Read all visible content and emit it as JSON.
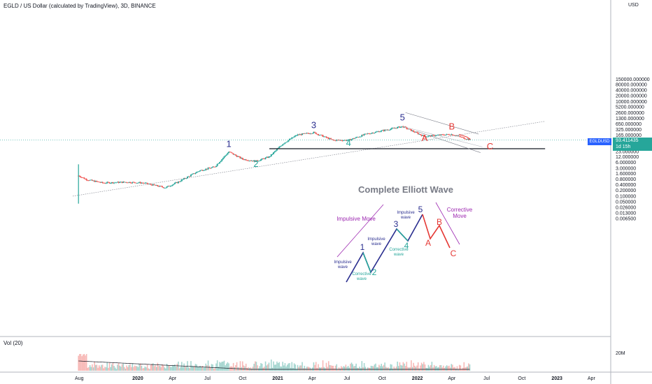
{
  "title": "EGLD / US Dollar (calculated by TradingView), 3D, BINANCE",
  "volume_label": "Vol (20)",
  "volume_axis_label": "20M",
  "symbol_tag": "EGLDUSD",
  "current_price": "93.411435",
  "countdown": "1d 15h",
  "axis_currency": "USD",
  "diagram_title": "Complete Elliott Wave",
  "colors": {
    "bull": "#26a69a",
    "bear": "#ef5350",
    "blue_wave": "#2a2e8f",
    "red_wave": "#e53935",
    "green_wave": "#26a69a",
    "purple": "#9c27b0",
    "price_tag": "#2962ff"
  },
  "chart_data": {
    "type": "candlestick",
    "y_scale": "log",
    "y_ticks": [
      "150000.000000",
      "80000.000000",
      "40000.000000",
      "20000.000000",
      "10000.000000",
      "5200.000000",
      "2600.000000",
      "1300.000000",
      "650.000000",
      "325.000000",
      "165.000000",
      "45.000000",
      "23.000000",
      "12.000000",
      "6.000000",
      "3.000000",
      "1.600000",
      "0.800000",
      "0.400000",
      "0.200000",
      "0.100000",
      "0.050000",
      "0.026000",
      "0.013000",
      "0.006500"
    ],
    "x_ticks": [
      "Aug",
      "2020",
      "Apr",
      "Jul",
      "Oct",
      "2021",
      "Apr",
      "Jul",
      "Oct",
      "2022",
      "Apr",
      "Jul",
      "Oct",
      "2023",
      "Apr"
    ],
    "price_path": [
      [
        "2019-07-30",
        1.2
      ],
      [
        "2019-08-20",
        0.75
      ],
      [
        "2019-10-01",
        0.5
      ],
      [
        "2019-12-01",
        0.55
      ],
      [
        "2020-01-15",
        0.5
      ],
      [
        "2020-03-13",
        0.28
      ],
      [
        "2020-04-15",
        0.55
      ],
      [
        "2020-06-10",
        2.2
      ],
      [
        "2020-07-20",
        3.5
      ],
      [
        "2020-08-26",
        22
      ],
      [
        "2020-10-01",
        9
      ],
      [
        "2020-11-05",
        7
      ],
      [
        "2020-12-10",
        12
      ],
      [
        "2021-01-15",
        60
      ],
      [
        "2021-02-20",
        170
      ],
      [
        "2021-04-05",
        230
      ],
      [
        "2021-05-25",
        90
      ],
      [
        "2021-07-05",
        90
      ],
      [
        "2021-08-20",
        190
      ],
      [
        "2021-11-23",
        480
      ],
      [
        "2022-01-20",
        140
      ],
      [
        "2022-02-20",
        165
      ],
      [
        "2022-04-01",
        185
      ],
      [
        "2022-05-01",
        120
      ],
      [
        "2022-05-20",
        93
      ]
    ],
    "wave_labels": [
      {
        "text": "1",
        "date": "2020-08-26",
        "group": "impulse"
      },
      {
        "text": "2",
        "date": "2020-11-05",
        "group": "corrective"
      },
      {
        "text": "3",
        "date": "2021-04-05",
        "group": "impulse"
      },
      {
        "text": "4",
        "date": "2021-07-05",
        "group": "corrective"
      },
      {
        "text": "5",
        "date": "2021-11-23",
        "group": "impulse"
      },
      {
        "text": "A",
        "date": "2022-01-20",
        "group": "abc"
      },
      {
        "text": "B",
        "date": "2022-04-01",
        "group": "abc"
      },
      {
        "text": "C",
        "date": "2022-07-10",
        "group": "abc"
      }
    ],
    "support_level": 32,
    "diagram": {
      "numbers": [
        "1",
        "2",
        "3",
        "4",
        "5"
      ],
      "letters": [
        "A",
        "B",
        "C"
      ],
      "annotations": {
        "impulsive_move": "Impulsive Move",
        "corrective_move": "Corrective\nMove",
        "impulsive_wave": "Impulsive\nwave",
        "corrective_wave": "Corrective\nwave"
      }
    }
  }
}
